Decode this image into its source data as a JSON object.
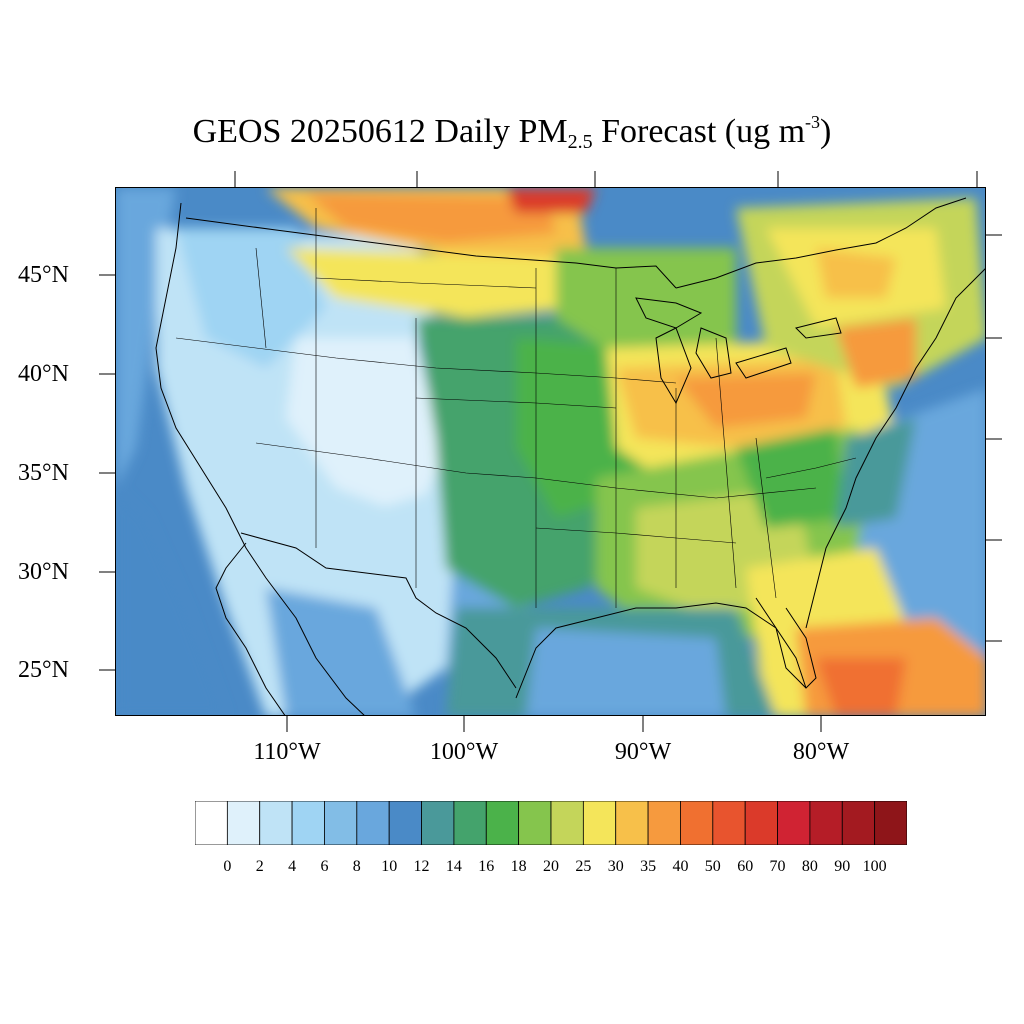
{
  "title": {
    "prefix": "GEOS 20250612 Daily PM",
    "subscript": "2.5",
    "middle": " Forecast (ug m",
    "superscript": "-3",
    "suffix": ")"
  },
  "map": {
    "region": "Contiguous United States",
    "projection": "Lambert conformal",
    "lat_labels": [
      "45°N",
      "40°N",
      "35°N",
      "30°N",
      "25°N"
    ],
    "lon_labels": [
      "110°W",
      "100°W",
      "90°W",
      "80°W"
    ],
    "boundaries": [
      "coastlines",
      "national borders",
      "state borders"
    ]
  },
  "colorbar": {
    "levels": [
      "0",
      "2",
      "4",
      "6",
      "8",
      "10",
      "12",
      "14",
      "16",
      "18",
      "20",
      "25",
      "30",
      "35",
      "40",
      "50",
      "60",
      "70",
      "80",
      "90",
      "100"
    ],
    "colors": [
      "#ffffff",
      "#dff1fb",
      "#bfe3f6",
      "#9fd4f3",
      "#82bde6",
      "#69a7dd",
      "#4a8ac7",
      "#4a999a",
      "#44a36c",
      "#4bb24a",
      "#85c54d",
      "#c4d55a",
      "#f4e55a",
      "#f7c04a",
      "#f69a3e",
      "#f07030",
      "#e8542e",
      "#db3a2a",
      "#d02333",
      "#b51d27",
      "#a31a20",
      "#8e1519"
    ]
  }
}
